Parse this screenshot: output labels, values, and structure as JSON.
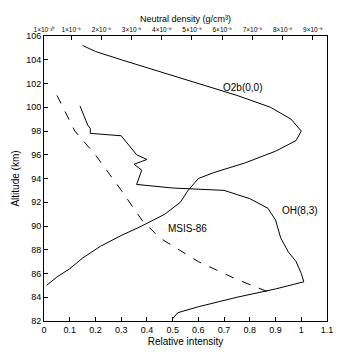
{
  "chart_data": {
    "type": "line",
    "x_label": "Relative intensity",
    "y_label": "Altitude (km)",
    "x2_label": "Neutral density (g/cm³)",
    "xlim": [
      0,
      1.1
    ],
    "xticks": [
      0,
      0.1,
      0.2,
      0.3,
      0.4,
      0.5,
      0.6,
      0.7,
      0.8,
      0.9,
      1,
      1.1
    ],
    "ylim": [
      82,
      106
    ],
    "yticks": [
      82,
      84,
      86,
      88,
      90,
      92,
      94,
      96,
      98,
      100,
      102,
      104,
      106
    ],
    "x2lim": [
      1e-10,
      9.47e-09
    ],
    "x2ticks": [
      {
        "value": 1e-10,
        "label": "1×10⁻¹⁰"
      },
      {
        "value": 1e-09,
        "label": "1×10⁻⁹"
      },
      {
        "value": 2e-09,
        "label": "2×10⁻⁹"
      },
      {
        "value": 3e-09,
        "label": "3×10⁻⁹"
      },
      {
        "value": 4e-09,
        "label": "4×10⁻⁹"
      },
      {
        "value": 5e-09,
        "label": "5×10⁻⁹"
      },
      {
        "value": 6e-09,
        "label": "6×10⁻⁹"
      },
      {
        "value": 7e-09,
        "label": "7×10⁻⁹"
      },
      {
        "value": 8e-09,
        "label": "8×10⁻⁹"
      },
      {
        "value": 9e-09,
        "label": "9×10⁻⁹"
      }
    ],
    "grid": false,
    "series": [
      {
        "name": "O2b(0,0)",
        "color": "#000000",
        "line_style": "solid",
        "x": [
          0.15,
          0.2,
          0.3,
          0.45,
          0.6,
          0.75,
          0.88,
          0.96,
          1.0,
          0.98,
          0.9,
          0.78,
          0.66,
          0.6,
          0.56,
          0.53,
          0.47,
          0.38,
          0.3,
          0.22,
          0.15,
          0.1,
          0.05,
          0.01
        ],
        "y": [
          105.2,
          104.7,
          104,
          103,
          102,
          101,
          100,
          99,
          98,
          97.2,
          96.3,
          95.3,
          94.5,
          94,
          93,
          92,
          91,
          90,
          89.2,
          88.3,
          87.3,
          86.4,
          85.7,
          85
        ]
      },
      {
        "name": "OH(8,3)",
        "color": "#000000",
        "line_style": "solid",
        "x": [
          0.14,
          0.17,
          0.18,
          0.18,
          0.3,
          0.33,
          0.36,
          0.4,
          0.35,
          0.38,
          0.36,
          0.5,
          0.7,
          0.8,
          0.87,
          0.9,
          0.92,
          0.95,
          0.98,
          1.0,
          1.01,
          0.9,
          0.75,
          0.6,
          0.52,
          0.5
        ],
        "y": [
          100.1,
          98.5,
          98.2,
          97.8,
          97.6,
          96.8,
          96,
          95.6,
          95.2,
          94.7,
          93.5,
          93.2,
          93,
          92.3,
          91.5,
          90.5,
          89,
          87.8,
          87,
          86,
          85.3,
          84.7,
          84,
          83.2,
          82.7,
          82.2
        ]
      },
      {
        "name": "MSIS-86",
        "color": "#000000",
        "line_style": "dashed",
        "axis": "x2",
        "x": [
          5.3e-10,
          1.12e-09,
          1.8e-09,
          2.66e-09,
          3.34e-09,
          3.93e-09,
          5.21e-09,
          6.49e-09,
          7.77e-09
        ],
        "y": [
          101,
          98,
          96,
          93,
          90.5,
          89,
          87,
          85.5,
          84.2
        ]
      }
    ]
  }
}
